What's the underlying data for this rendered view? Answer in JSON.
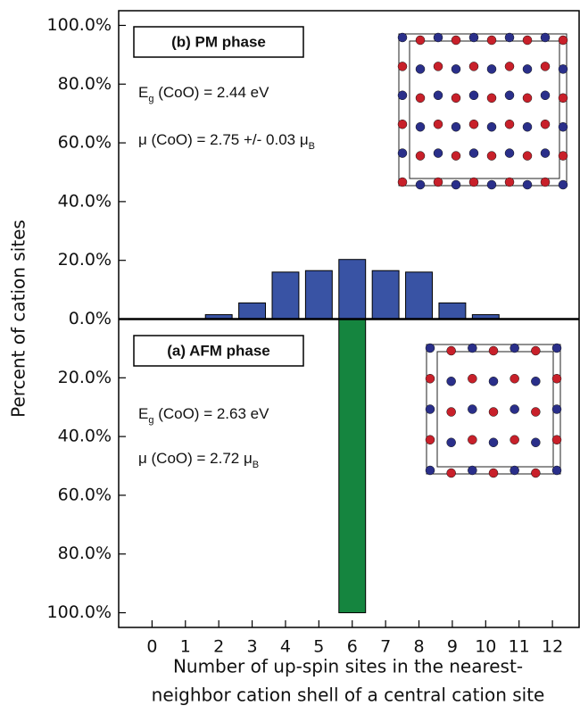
{
  "chart_data": {
    "type": "bar",
    "x": [
      0,
      1,
      2,
      3,
      4,
      5,
      6,
      7,
      8,
      9,
      10,
      11,
      12
    ],
    "series": [
      {
        "name": "(b) PM phase",
        "color": "#3953a4",
        "values": [
          0,
          0,
          1.5,
          5.5,
          16,
          16.5,
          20.3,
          16.5,
          16,
          5.5,
          1.5,
          0,
          0
        ]
      },
      {
        "name": "(a) AFM phase",
        "color": "#15853f",
        "values": [
          0,
          0,
          0,
          0,
          0,
          0,
          -100,
          0,
          0,
          0,
          0,
          0,
          0
        ]
      }
    ],
    "xlim": [
      -1,
      12.8
    ],
    "ylim": [
      -105,
      105
    ],
    "xticks": [
      0,
      1,
      2,
      3,
      4,
      5,
      6,
      7,
      8,
      9,
      10,
      11,
      12
    ],
    "yticks": [
      {
        "value": 100,
        "label": "100.0%"
      },
      {
        "value": 80,
        "label": "80.0%"
      },
      {
        "value": 60,
        "label": "60.0%"
      },
      {
        "value": 40,
        "label": "40.0%"
      },
      {
        "value": 20,
        "label": "20.0%"
      },
      {
        "value": 0,
        "label": "0.0%"
      },
      {
        "value": -20,
        "label": "20.0%"
      },
      {
        "value": -40,
        "label": "40.0%"
      },
      {
        "value": -60,
        "label": "60.0%"
      },
      {
        "value": -80,
        "label": "80.0%"
      },
      {
        "value": -100,
        "label": "100.0%"
      }
    ],
    "ylabel": "Percent of cation sites",
    "xlabel": [
      "Number of up-spin sites in the nearest-",
      "neighbor cation shell of a central cation site"
    ],
    "annotations": {
      "pm": [
        {
          "text": "E",
          "sub": "g",
          "rest": " (CoO) = 2.44 eV"
        },
        {
          "text": "μ (CoO) = 2.75 +/- 0.03 μ",
          "sub": "B",
          "rest": ""
        }
      ],
      "afm": [
        {
          "text": "E",
          "sub": "g",
          "rest": " (CoO) = 2.63 eV"
        },
        {
          "text": "μ (CoO) = 2.72 μ",
          "sub": "B",
          "rest": ""
        }
      ]
    }
  }
}
